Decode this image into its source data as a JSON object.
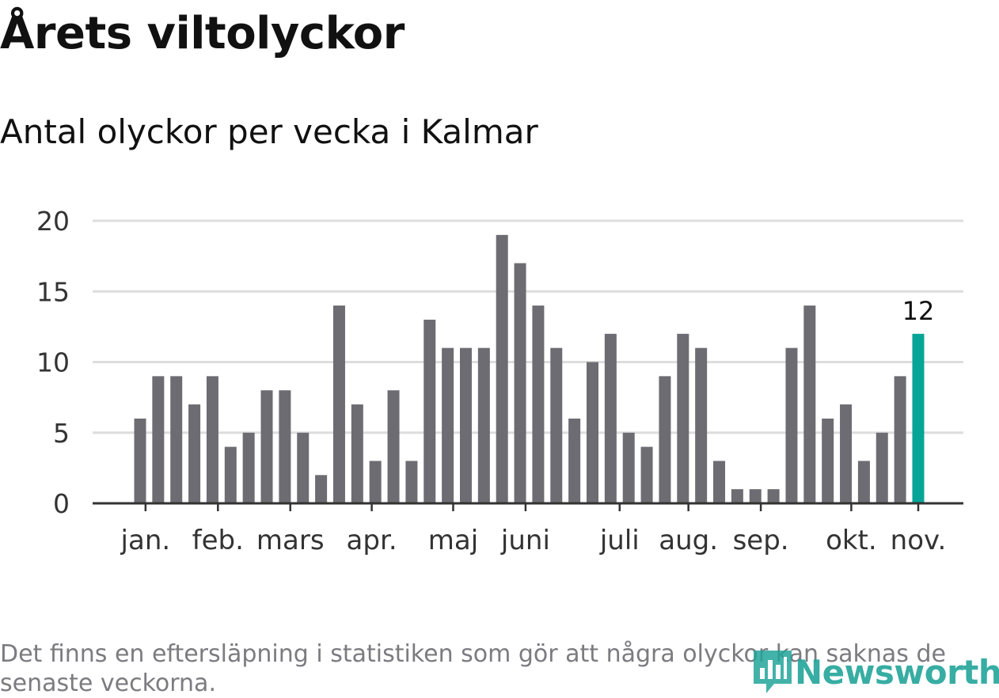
{
  "title": "Årets viltolyckor",
  "subtitle": "Antal olyckor per vecka i Kalmar",
  "footnote": "Det finns en eftersläpning i statistiken som gör att några olyckor kan saknas de senaste veckorna.",
  "logo": {
    "text": "Newsworthy",
    "icon": "bar-chart-pin-icon"
  },
  "colors": {
    "bar": "#6d6c72",
    "highlight": "#06a597",
    "grid": "#dddddd",
    "axis": "#333333",
    "text": "#333333"
  },
  "chart_data": {
    "type": "bar",
    "title": "Antal olyckor per vecka i Kalmar",
    "xlabel": "",
    "ylabel": "",
    "ylim": [
      0,
      20
    ],
    "yticks": [
      0,
      5,
      10,
      15,
      20
    ],
    "grid": true,
    "values": [
      6,
      9,
      9,
      7,
      9,
      4,
      5,
      8,
      8,
      5,
      2,
      14,
      7,
      3,
      8,
      3,
      13,
      11,
      11,
      11,
      19,
      17,
      14,
      11,
      6,
      10,
      12,
      5,
      4,
      9,
      12,
      11,
      3,
      1,
      1,
      1,
      11,
      14,
      6,
      7,
      3,
      5,
      9,
      12
    ],
    "month_ticks": [
      {
        "label": "jan.",
        "index": 0.3
      },
      {
        "label": "feb.",
        "index": 4.3
      },
      {
        "label": "mars",
        "index": 8.3
      },
      {
        "label": "apr.",
        "index": 12.8
      },
      {
        "label": "maj",
        "index": 17.3
      },
      {
        "label": "juni",
        "index": 21.3
      },
      {
        "label": "juli",
        "index": 26.5
      },
      {
        "label": "aug.",
        "index": 30.3
      },
      {
        "label": "sep.",
        "index": 34.3
      },
      {
        "label": "okt.",
        "index": 39.3
      },
      {
        "label": "nov.",
        "index": 43.0
      }
    ],
    "highlight_index": 43,
    "highlight_label": "12"
  }
}
